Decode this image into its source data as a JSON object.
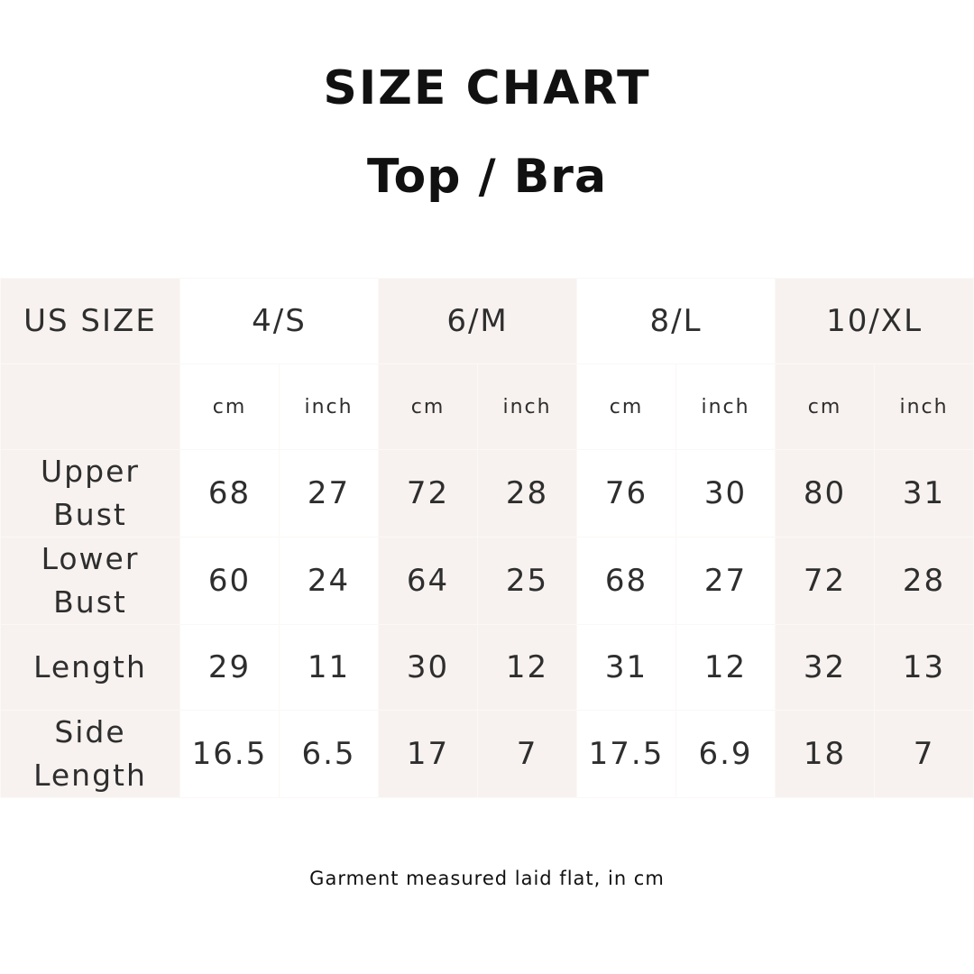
{
  "title": "SIZE CHART",
  "subtitle": "Top / Bra",
  "table": {
    "corner": "US SIZE",
    "sizes": [
      "4/S",
      "6/M",
      "8/L",
      "10/XL"
    ],
    "units": [
      "cm",
      "inch"
    ],
    "rows": [
      {
        "label": "Upper Bust",
        "values": [
          "68",
          "27",
          "72",
          "28",
          "76",
          "30",
          "80",
          "31"
        ]
      },
      {
        "label": "Lower Bust",
        "values": [
          "60",
          "24",
          "64",
          "25",
          "68",
          "27",
          "72",
          "28"
        ]
      },
      {
        "label": "Length",
        "values": [
          "29",
          "11",
          "30",
          "12",
          "31",
          "12",
          "32",
          "13"
        ]
      },
      {
        "label": "Side Length",
        "values": [
          "16.5",
          "6.5",
          "17",
          "7",
          "17.5",
          "6.9",
          "18",
          "7"
        ]
      }
    ]
  },
  "note": "Garment measured laid flat, in cm",
  "colors": {
    "shade": "#f7f2ef",
    "text": "#2e2e2e"
  }
}
